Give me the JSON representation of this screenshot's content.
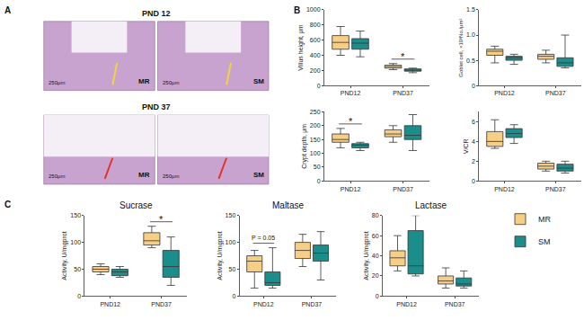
{
  "panel_labels": [
    "A",
    "B",
    "C"
  ],
  "histology": {
    "rows": [
      {
        "label": "PND 12",
        "images": [
          {
            "group": "MR",
            "scale": "250μm"
          },
          {
            "group": "SM",
            "scale": "250μm"
          }
        ]
      },
      {
        "label": "PND 37",
        "images": [
          {
            "group": "MR",
            "scale": "250μm"
          },
          {
            "group": "SM",
            "scale": "250μm"
          }
        ]
      }
    ]
  },
  "chart_data": [
    {
      "type": "box",
      "panel": "B",
      "y_label": "Villus height, μm",
      "categories": [
        "PND12",
        "PND37"
      ],
      "ylim": [
        0,
        1000
      ],
      "yticks": [
        0,
        200,
        400,
        600,
        800,
        1000
      ],
      "grid": false,
      "series": [
        {
          "name": "MR",
          "color": "#F6CE85",
          "min": [
            400,
            210
          ],
          "q1": [
            480,
            230
          ],
          "median": [
            570,
            250
          ],
          "q3": [
            660,
            270
          ],
          "max": [
            780,
            290
          ]
        },
        {
          "name": "SM",
          "color": "#1B8E8C",
          "min": [
            380,
            170
          ],
          "q1": [
            480,
            190
          ],
          "median": [
            560,
            200
          ],
          "q3": [
            620,
            220
          ],
          "max": [
            720,
            230
          ]
        }
      ],
      "annotations": [
        {
          "category": "PND37",
          "text": "*"
        }
      ]
    },
    {
      "type": "box",
      "panel": "B",
      "y_label": "Goblet cell, ×10³No./μm²",
      "categories": [
        "PND12",
        "PND37"
      ],
      "ylim": [
        0,
        1.5
      ],
      "yticks": [
        0,
        0.5,
        {
          "value": 1,
          "label": "1.0"
        },
        1.5
      ],
      "grid": false,
      "series": [
        {
          "name": "MR",
          "color": "#F6CE85",
          "min": [
            0.45,
            0.45
          ],
          "q1": [
            0.6,
            0.52
          ],
          "median": [
            0.68,
            0.58
          ],
          "q3": [
            0.72,
            0.62
          ],
          "max": [
            0.78,
            0.7
          ]
        },
        {
          "name": "SM",
          "color": "#1B8E8C",
          "min": [
            0.42,
            0.35
          ],
          "q1": [
            0.5,
            0.38
          ],
          "median": [
            0.55,
            0.45
          ],
          "q3": [
            0.58,
            0.55
          ],
          "max": [
            0.62,
            1.0
          ]
        }
      ],
      "annotations": []
    },
    {
      "type": "box",
      "panel": "B",
      "y_label": "Crypt depth, μm",
      "categories": [
        "PND12",
        "PND37"
      ],
      "ylim": [
        0,
        250
      ],
      "yticks": [
        0,
        50,
        100,
        150,
        200,
        250
      ],
      "grid": false,
      "series": [
        {
          "name": "MR",
          "color": "#F6CE85",
          "min": [
            120,
            140
          ],
          "q1": [
            140,
            160
          ],
          "median": [
            150,
            170
          ],
          "q3": [
            170,
            185
          ],
          "max": [
            190,
            200
          ]
        },
        {
          "name": "SM",
          "color": "#1B8E8C",
          "min": [
            110,
            110
          ],
          "q1": [
            120,
            150
          ],
          "median": [
            130,
            165
          ],
          "q3": [
            135,
            200
          ],
          "max": [
            140,
            240
          ]
        }
      ],
      "annotations": [
        {
          "category": "PND12",
          "text": "*"
        }
      ]
    },
    {
      "type": "box",
      "panel": "B",
      "y_label": "V/CR",
      "categories": [
        "PND12",
        "PND37"
      ],
      "ylim": [
        0,
        7
      ],
      "yticks": [
        0,
        2,
        4,
        6
      ],
      "grid": false,
      "series": [
        {
          "name": "MR",
          "color": "#F6CE85",
          "min": [
            3.3,
            1.0
          ],
          "q1": [
            3.5,
            1.2
          ],
          "median": [
            4.0,
            1.5
          ],
          "q3": [
            5.0,
            1.8
          ],
          "max": [
            6.2,
            2.0
          ]
        },
        {
          "name": "SM",
          "color": "#1B8E8C",
          "min": [
            3.8,
            0.8
          ],
          "q1": [
            4.4,
            1.0
          ],
          "median": [
            4.8,
            1.3
          ],
          "q3": [
            5.3,
            1.7
          ],
          "max": [
            5.7,
            2.0
          ]
        }
      ],
      "annotations": []
    },
    {
      "type": "box",
      "panel": "C",
      "title": "Sucrase",
      "y_label": "Activity, U/mgprot",
      "categories": [
        "PND12",
        "PND37"
      ],
      "ylim": [
        0,
        150
      ],
      "yticks": [
        0,
        50,
        100,
        150
      ],
      "grid": false,
      "series": [
        {
          "name": "MR",
          "color": "#F6CE85",
          "min": [
            40,
            90
          ],
          "q1": [
            45,
            95
          ],
          "median": [
            50,
            103
          ],
          "q3": [
            55,
            118
          ],
          "max": [
            60,
            130
          ]
        },
        {
          "name": "SM",
          "color": "#1B8E8C",
          "min": [
            35,
            20
          ],
          "q1": [
            38,
            35
          ],
          "median": [
            45,
            55
          ],
          "q3": [
            50,
            85
          ],
          "max": [
            55,
            110
          ]
        }
      ],
      "annotations": [
        {
          "category": "PND37",
          "text": "*"
        }
      ]
    },
    {
      "type": "box",
      "panel": "C",
      "title": "Maltase",
      "y_label": "Activity, U/mgprot",
      "categories": [
        "PND12",
        "PND37"
      ],
      "ylim": [
        0,
        150
      ],
      "yticks": [
        0,
        50,
        100,
        150
      ],
      "grid": false,
      "series": [
        {
          "name": "MR",
          "color": "#F6CE85",
          "min": [
            15,
            55
          ],
          "q1": [
            45,
            70
          ],
          "median": [
            65,
            85
          ],
          "q3": [
            75,
            100
          ],
          "max": [
            85,
            115
          ]
        },
        {
          "name": "SM",
          "color": "#1B8E8C",
          "min": [
            15,
            30
          ],
          "q1": [
            20,
            65
          ],
          "median": [
            25,
            80
          ],
          "q3": [
            45,
            95
          ],
          "max": [
            90,
            120
          ]
        }
      ],
      "annotations": [
        {
          "category": "PND12",
          "text": "P = 0.05"
        }
      ]
    },
    {
      "type": "box",
      "panel": "C",
      "title": "Lactase",
      "y_label": "Activity, U/mgprot",
      "categories": [
        "PND12",
        "PND37"
      ],
      "ylim": [
        0,
        80
      ],
      "yticks": [
        0,
        20,
        40,
        60,
        80
      ],
      "grid": false,
      "legend": "right",
      "series": [
        {
          "name": "MR",
          "color": "#F6CE85",
          "min": [
            25,
            8
          ],
          "q1": [
            30,
            12
          ],
          "median": [
            38,
            15
          ],
          "q3": [
            45,
            20
          ],
          "max": [
            60,
            28
          ]
        },
        {
          "name": "SM",
          "color": "#1B8E8C",
          "min": [
            20,
            8
          ],
          "q1": [
            22,
            10
          ],
          "median": [
            30,
            12
          ],
          "q3": [
            65,
            18
          ],
          "max": [
            80,
            25
          ]
        }
      ],
      "annotations": []
    }
  ]
}
